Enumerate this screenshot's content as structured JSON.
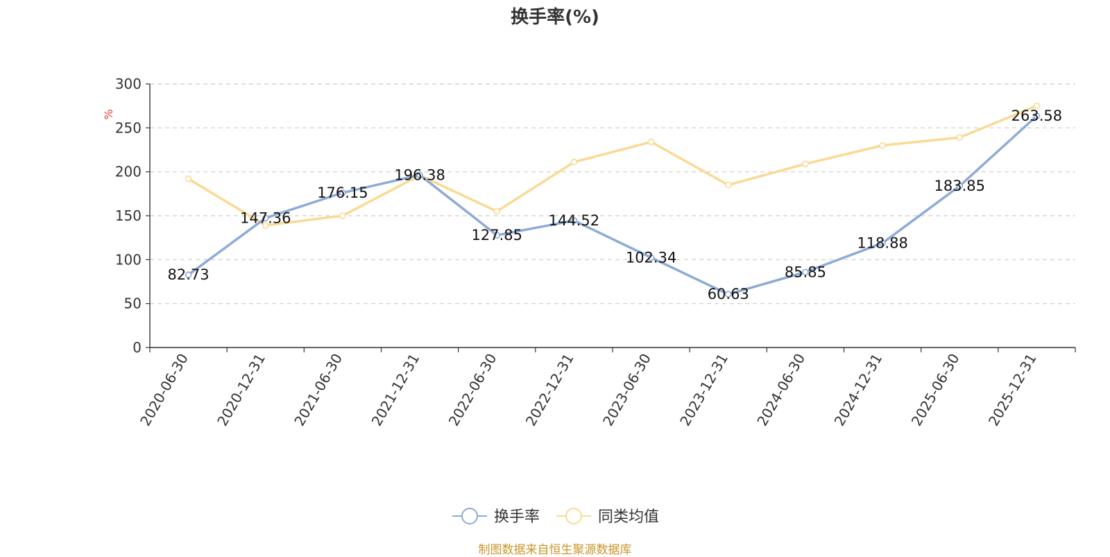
{
  "chart_data": {
    "type": "line",
    "title": "换手率(%)",
    "ylabel": "%",
    "xlabel": "",
    "ylim": [
      0,
      300
    ],
    "yticks": [
      0,
      50,
      100,
      150,
      200,
      250,
      300
    ],
    "grid": true,
    "legend_position": "bottom-center",
    "categories": [
      "2020-06-30",
      "2020-12-31",
      "2021-06-30",
      "2021-12-31",
      "2022-06-30",
      "2022-12-31",
      "2023-06-30",
      "2023-12-31",
      "2024-06-30",
      "2024-12-31",
      "2025-06-30",
      "2025-12-31"
    ],
    "series": [
      {
        "name": "换手率",
        "color": "#8eaad6",
        "values": [
          82.73,
          147.36,
          176.15,
          196.38,
          127.85,
          144.52,
          102.34,
          60.63,
          85.85,
          118.88,
          183.85,
          263.58
        ],
        "show_labels": true
      },
      {
        "name": "同类均值",
        "color": "#fbd992",
        "values": [
          192,
          139,
          150,
          196,
          155,
          211,
          234,
          185,
          209,
          230,
          239,
          275
        ],
        "show_labels": false
      }
    ]
  },
  "footer": {
    "source": "制图数据来自恒生聚源数据库"
  }
}
